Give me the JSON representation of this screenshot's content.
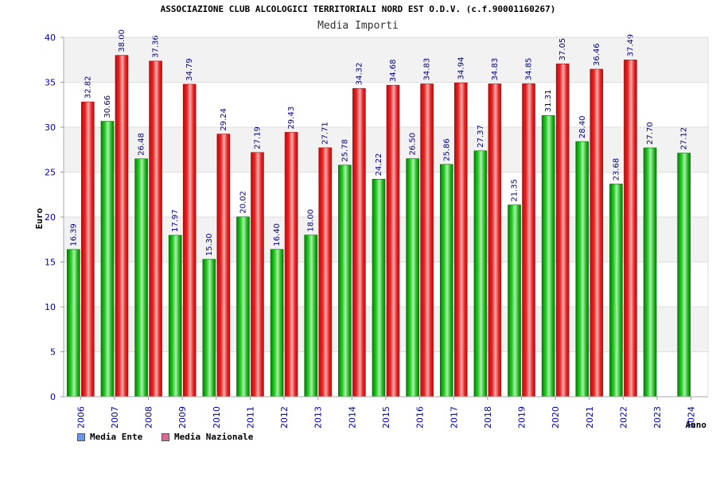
{
  "title": "ASSOCIAZIONE CLUB ALCOLOGICI TERRITORIALI NORD EST O.D.V. (c.f.90001160267)",
  "chart_data": {
    "type": "bar",
    "title": "Media Importi",
    "xlabel": "Anno",
    "ylabel": "Euro",
    "ylim": [
      0,
      40
    ],
    "yticks": [
      0,
      5,
      10,
      15,
      20,
      25,
      30,
      35,
      40
    ],
    "categories": [
      "2006",
      "2007",
      "2008",
      "2009",
      "2010",
      "2011",
      "2012",
      "2013",
      "2014",
      "2015",
      "2016",
      "2017",
      "2018",
      "2019",
      "2020",
      "2021",
      "2022",
      "2023",
      "2024"
    ],
    "series": [
      {
        "name": "Media Ente",
        "color": "#22bb22",
        "legend_color": "#6699ee",
        "values": [
          16.39,
          30.66,
          26.48,
          17.97,
          15.3,
          20.02,
          16.4,
          18.0,
          25.78,
          24.22,
          26.5,
          25.86,
          27.37,
          21.35,
          31.31,
          28.4,
          23.68,
          27.7,
          27.12
        ],
        "labels": [
          "16.39",
          "30.66",
          "26.48",
          "17.97",
          "15.30",
          "20.02",
          "16.40",
          "18.00",
          "25.78",
          "24.22",
          "26.50",
          "25.86",
          "27.37",
          "21.35",
          "31.31",
          "28.40",
          "23.68",
          "27.70",
          "27.12"
        ]
      },
      {
        "name": "Media Nazionale",
        "color": "#ee2222",
        "legend_color": "#dd6699",
        "values": [
          32.82,
          38.0,
          37.36,
          34.79,
          29.24,
          27.19,
          29.43,
          27.71,
          34.32,
          34.68,
          34.83,
          34.94,
          34.83,
          34.85,
          37.05,
          36.46,
          37.49,
          null,
          null
        ],
        "labels": [
          "32.82",
          "38.00",
          "37.36",
          "34.79",
          "29.24",
          "27.19",
          "29.43",
          "27.71",
          "34.32",
          "34.68",
          "34.83",
          "34.94",
          "34.83",
          "34.85",
          "37.05",
          "36.46",
          "37.49",
          "",
          ""
        ]
      }
    ],
    "grid": true,
    "legend_position": "bottom-left"
  }
}
